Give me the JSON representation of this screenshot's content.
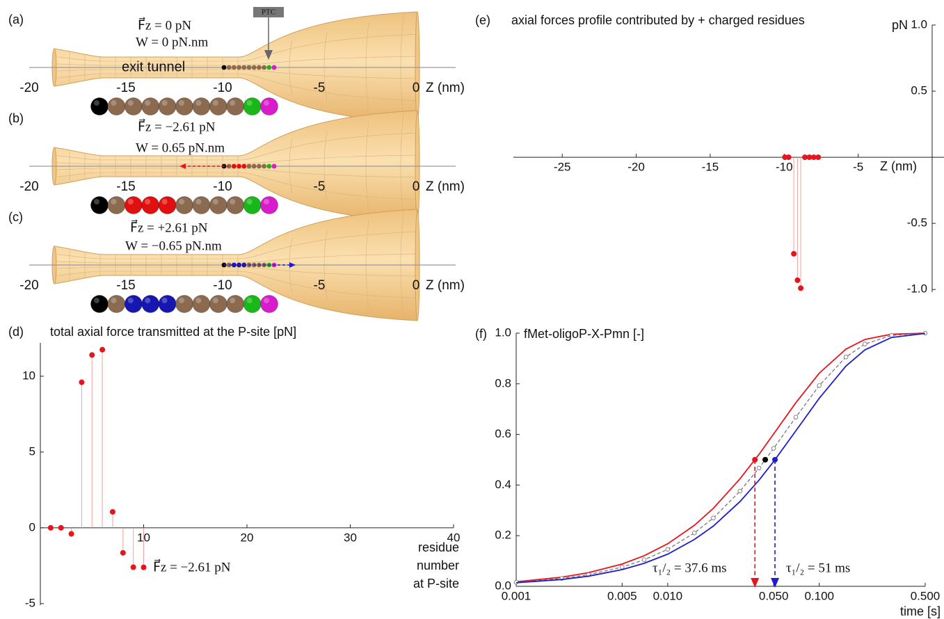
{
  "diagram": {
    "ptc_label": "PTC",
    "tunnel_label": "exit tunnel",
    "axis_label": "Z (nm)",
    "zticks": [
      -20,
      -15,
      -10,
      -5,
      0
    ],
    "panels": [
      {
        "label": "(a)",
        "force": "F⃗z = 0 pN",
        "work": "W = 0 pN.nm",
        "color": "#333333",
        "beads": [
          "#000000",
          "#8b6a4f",
          "#8b6a4f",
          "#8b6a4f",
          "#8b6a4f",
          "#8b6a4f",
          "#8b6a4f",
          "#8b6a4f",
          "#8b6a4f",
          "#18b818",
          "#d81ccc"
        ]
      },
      {
        "label": "(b)",
        "force": "F⃗z = −2.61 pN",
        "work": "W = 0.65 pN.nm",
        "color": "#e8141b",
        "beads": [
          "#000000",
          "#8b6a4f",
          "#e01010",
          "#e01010",
          "#e01010",
          "#8b6a4f",
          "#8b6a4f",
          "#8b6a4f",
          "#8b6a4f",
          "#18b818",
          "#d81ccc"
        ]
      },
      {
        "label": "(c)",
        "force": "F⃗z = +2.61 pN",
        "work": "W = −0.65 pN.nm",
        "color": "#1d1dcc",
        "beads": [
          "#000000",
          "#8b6a4f",
          "#1616b0",
          "#1616b0",
          "#1616b0",
          "#8b6a4f",
          "#8b6a4f",
          "#8b6a4f",
          "#8b6a4f",
          "#18b818",
          "#d81ccc"
        ]
      }
    ]
  },
  "chart_data": [
    {
      "type": "stem",
      "label": "(d)",
      "title": "total axial force transmitted at the P-site [pN]",
      "x_label": [
        "residue",
        "number",
        "at P-site"
      ],
      "x": [
        1,
        2,
        3,
        4,
        5,
        6,
        7,
        8,
        9,
        10
      ],
      "values": [
        0,
        0,
        -0.4,
        9.6,
        11.4,
        11.75,
        1.05,
        -1.65,
        -2.6,
        -2.61
      ],
      "color": "#e8141b",
      "stem_color": "#f4a0a0",
      "xlim": [
        0,
        40
      ],
      "xticks": [
        10,
        20,
        30,
        40
      ],
      "ylim": [
        -5.1,
        12.2
      ],
      "yticks": [
        10,
        5,
        0,
        -5
      ],
      "annotation": "F⃗z = −2.61 pN",
      "annotation_color": "#e8141b"
    },
    {
      "type": "stem",
      "label": "(e)",
      "title": "axial forces profile contributed by + charged residues",
      "x_label": "Z (nm)",
      "y_label": "pN",
      "x": [
        -9.95,
        -9.7,
        -8.6,
        -8.3,
        -8.0,
        -7.7,
        -9.35,
        -9.1,
        -8.88
      ],
      "values": [
        0,
        0,
        0,
        0,
        0,
        0,
        -0.73,
        -0.93,
        -0.99
      ],
      "color": "#e8141b",
      "stem_color": "#f4a0a0",
      "xlim": [
        -28.3,
        0.8
      ],
      "xticks": [
        -25,
        -20,
        -15,
        -10,
        -5
      ],
      "ylim": [
        -1.02,
        1.0
      ],
      "yticks": [
        {
          "value": 1,
          "label": "1.0"
        },
        0.5,
        -0.5,
        {
          "value": -1,
          "label": "-1.0"
        }
      ]
    },
    {
      "type": "line",
      "label": "(f)",
      "title": "fMet-oligoP-X-Pmn [-]",
      "x_label": "time [s]",
      "xscale": "log",
      "x": [
        0.001,
        0.002,
        0.003,
        0.005,
        0.007,
        0.01,
        0.015,
        0.02,
        0.03,
        0.04,
        0.05,
        0.07,
        0.1,
        0.15,
        0.2,
        0.3,
        0.5
      ],
      "series": [
        {
          "color": "#e8141b",
          "values": [
            0.018,
            0.036,
            0.054,
            0.088,
            0.121,
            0.168,
            0.241,
            0.308,
            0.425,
            0.521,
            0.602,
            0.725,
            0.842,
            0.937,
            0.975,
            0.996,
            1.0
          ]
        },
        {
          "color": "#777777",
          "dash": true,
          "marker": "open-circle",
          "values": [
            0.016,
            0.031,
            0.046,
            0.076,
            0.105,
            0.146,
            0.211,
            0.27,
            0.376,
            0.467,
            0.545,
            0.668,
            0.793,
            0.906,
            0.957,
            0.991,
            1.0
          ]
        },
        {
          "color": "#1d1dcc",
          "values": [
            0.014,
            0.027,
            0.04,
            0.066,
            0.091,
            0.127,
            0.185,
            0.238,
            0.335,
            0.419,
            0.493,
            0.614,
            0.743,
            0.87,
            0.934,
            0.983,
            0.999
          ]
        }
      ],
      "tau_markers": [
        {
          "x": 0.0376,
          "y": 0.5,
          "color": "#e8141b",
          "label": "τ₁/₂ = 37.6 ms"
        },
        {
          "x": 0.051,
          "y": 0.5,
          "color": "#1d1dcc",
          "label": "τ₁/₂ = 51 ms"
        }
      ],
      "mid_point": {
        "x": 0.044,
        "y": 0.5,
        "color": "#000000"
      },
      "xlim": [
        0.001,
        0.5
      ],
      "xticks": [
        0.001,
        0.005,
        {
          "value": 0.01,
          "label": "0.010"
        },
        {
          "value": 0.05,
          "label": "0.050"
        },
        {
          "value": 0.1,
          "label": "0.100"
        },
        {
          "value": 0.5,
          "label": "0.500"
        }
      ],
      "ylim": [
        0,
        1
      ],
      "yticks": [
        {
          "value": 0,
          "label": "0.0"
        },
        0.2,
        0.4,
        0.6,
        0.8,
        {
          "value": 1,
          "label": "1.0"
        }
      ]
    }
  ]
}
